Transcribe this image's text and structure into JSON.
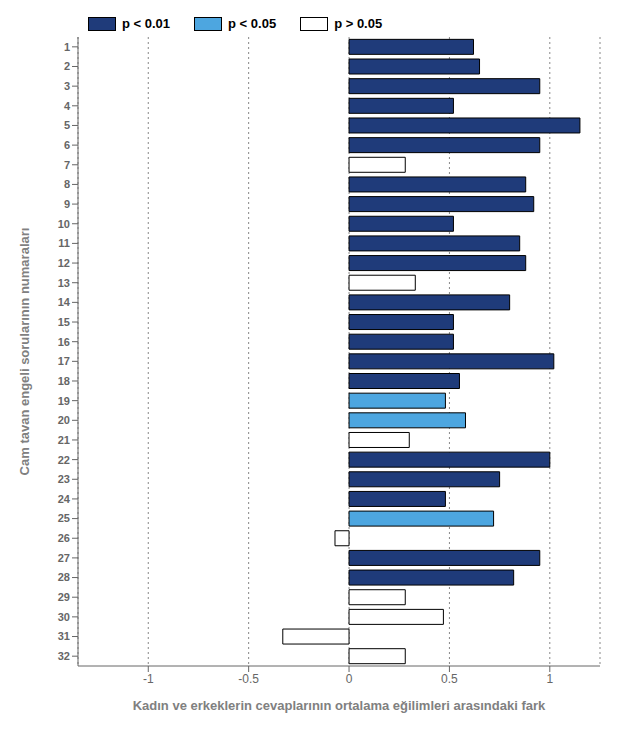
{
  "chart_data": {
    "type": "bar",
    "orientation": "horizontal",
    "stacked": true,
    "xlabel": "Kadın ve erkeklerin cevaplarının ortalama eğilimleri arasındaki fark",
    "ylabel": "Cam tavan engeli sorularının numaraları",
    "categories": [
      1,
      2,
      3,
      4,
      5,
      6,
      7,
      8,
      9,
      10,
      11,
      12,
      13,
      14,
      15,
      16,
      17,
      18,
      19,
      20,
      21,
      22,
      23,
      24,
      25,
      26,
      27,
      28,
      29,
      30,
      31,
      32
    ],
    "series": [
      {
        "name": "p < 0.01",
        "color": "#1f3b7a",
        "values": [
          0.62,
          0.65,
          0.95,
          0.52,
          1.15,
          0.95,
          null,
          0.88,
          0.92,
          0.52,
          0.85,
          0.88,
          null,
          0.8,
          0.52,
          0.52,
          1.02,
          0.55,
          null,
          null,
          null,
          1.0,
          0.75,
          0.48,
          null,
          null,
          0.95,
          0.82,
          null,
          null,
          null,
          null
        ]
      },
      {
        "name": "p < 0.05",
        "color": "#4da6e0",
        "values": [
          null,
          null,
          null,
          null,
          null,
          null,
          null,
          null,
          null,
          null,
          null,
          null,
          null,
          null,
          null,
          null,
          null,
          null,
          0.48,
          0.58,
          null,
          null,
          null,
          null,
          0.72,
          null,
          null,
          null,
          null,
          null,
          null,
          null
        ]
      },
      {
        "name": "p > 0.05",
        "color": "#ffffff",
        "values": [
          null,
          null,
          null,
          null,
          null,
          null,
          0.28,
          null,
          null,
          null,
          null,
          null,
          0.33,
          null,
          null,
          null,
          null,
          null,
          null,
          null,
          0.3,
          null,
          null,
          null,
          null,
          -0.07,
          null,
          null,
          0.28,
          0.47,
          -0.33,
          0.28
        ]
      }
    ],
    "xlim": [
      -1.35,
      1.25
    ],
    "xticks": [
      -1,
      -0.5,
      0,
      0.5,
      1
    ],
    "grid": true,
    "legend": "top left"
  }
}
